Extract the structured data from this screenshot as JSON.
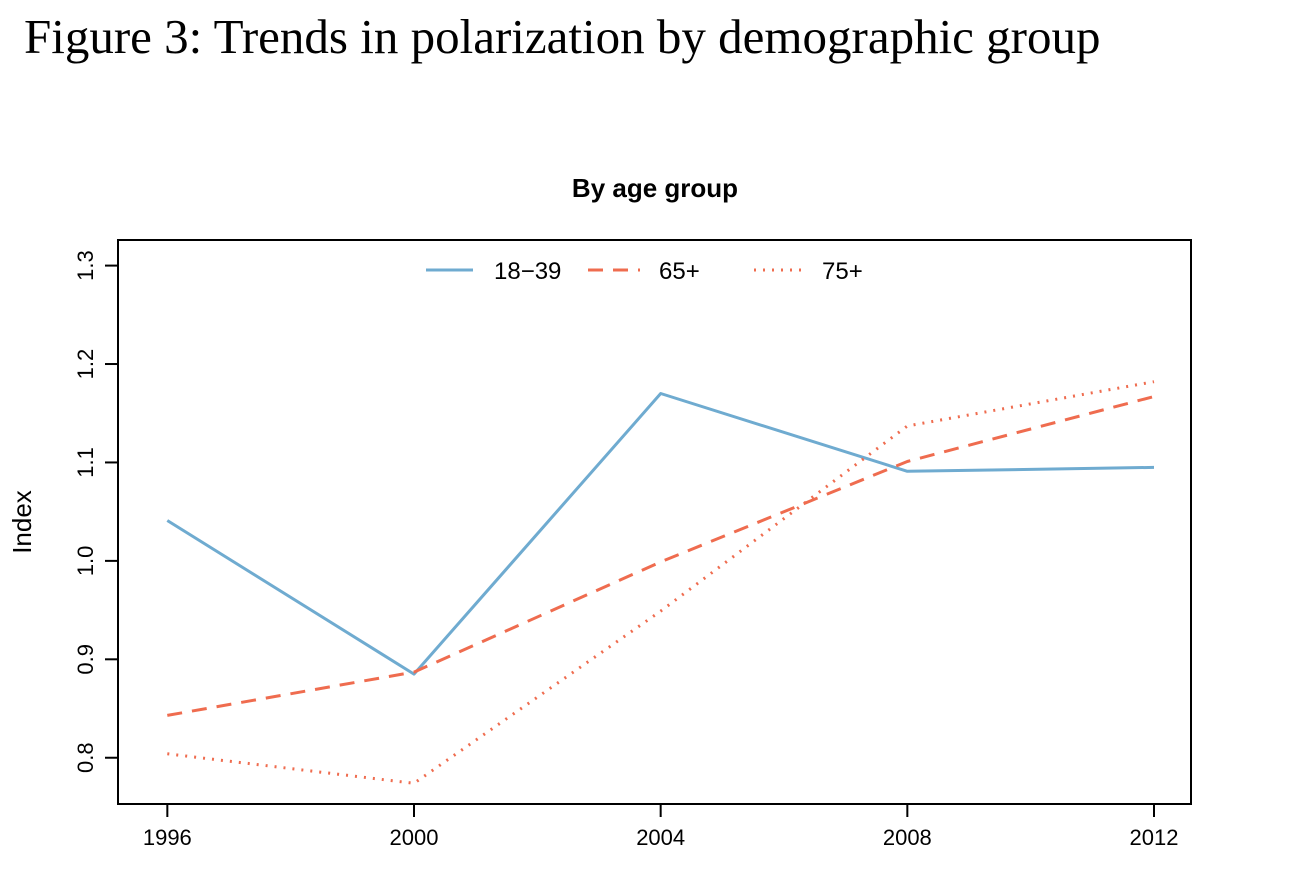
{
  "figure": {
    "title": "Figure 3: Trends in polarization by demographic group"
  },
  "colors": {
    "blue": "#6fabd0",
    "orange": "#ef6c4f",
    "axis": "#000000"
  },
  "chart_data": {
    "type": "line",
    "title": "By age group",
    "xlabel": "",
    "ylabel": "Index",
    "x": [
      1996,
      2000,
      2004,
      2008,
      2012
    ],
    "xlim": [
      1995.2,
      2012.6
    ],
    "ylim": [
      0.753,
      1.326
    ],
    "xticks": [
      "1996",
      "2000",
      "2004",
      "2008",
      "2012"
    ],
    "yticks": [
      "0.8",
      "0.9",
      "1.0",
      "1.1",
      "1.2",
      "1.3"
    ],
    "grid": false,
    "legend_position": "top-center",
    "series": [
      {
        "name": "18−39",
        "values": [
          1.041,
          0.885,
          1.17,
          1.091,
          1.095
        ],
        "color": "blue",
        "dash": "solid"
      },
      {
        "name": "65+",
        "values": [
          0.843,
          0.887,
          0.999,
          1.101,
          1.167
        ],
        "color": "orange",
        "dash": "dashed"
      },
      {
        "name": "75+",
        "values": [
          0.804,
          0.774,
          0.949,
          1.137,
          1.182
        ],
        "color": "orange",
        "dash": "dotted"
      }
    ]
  }
}
